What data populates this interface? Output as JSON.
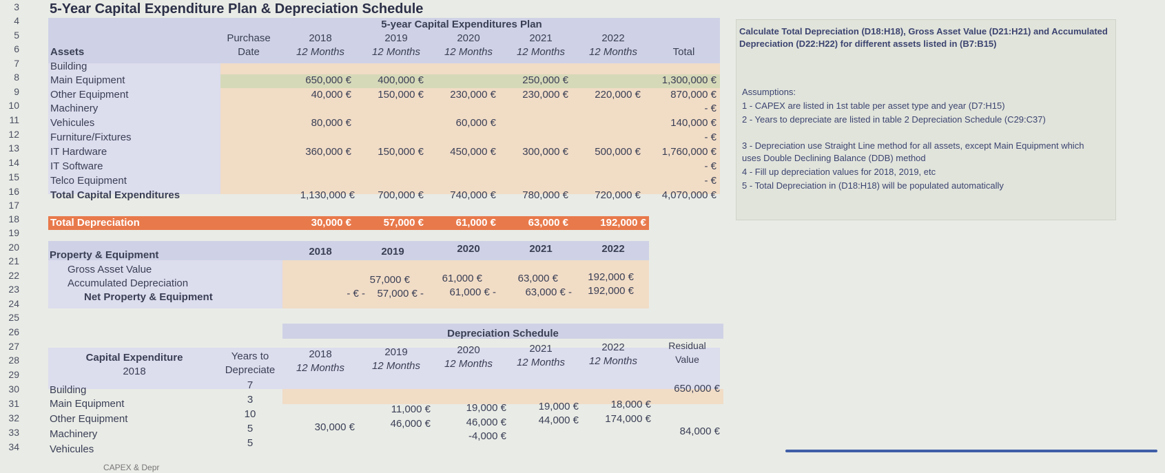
{
  "rows": [
    "3",
    "4",
    "5",
    "6",
    "7",
    "8",
    "9",
    "10",
    "11",
    "12",
    "13",
    "14",
    "15",
    "16",
    "17",
    "18",
    "19",
    "20",
    "21",
    "22",
    "23",
    "24",
    "25",
    "26",
    "27",
    "28",
    "29",
    "30",
    "31",
    "32",
    "33",
    "34"
  ],
  "title": "5-Year Capital Expenditure Plan & Depreciation Schedule",
  "capex": {
    "band": "5-year Capital Expenditures Plan",
    "purchase": "Purchase",
    "date": "Date",
    "assets": "Assets",
    "years": [
      "2018",
      "2019",
      "2020",
      "2021",
      "2022"
    ],
    "months": "12 Months",
    "total": "Total",
    "items": [
      "Building",
      "Main Equipment",
      "Other Equipment",
      "Machinery",
      "Vehicules",
      "Furniture/Fixtures",
      "IT Hardware",
      "IT Software",
      "Telco Equipment",
      "Total Capital Expenditures"
    ],
    "values": {
      "main": [
        "650,000 €",
        "400,000 €",
        "",
        "250,000 €",
        "",
        "1,300,000 €"
      ],
      "other": [
        "40,000 €",
        "150,000 €",
        "230,000 €",
        "230,000 €",
        "220,000 €",
        "870,000 €"
      ],
      "mach_total": "- €",
      "veh": [
        "80,000 €",
        "",
        "60,000 €",
        "",
        "",
        "140,000 €"
      ],
      "furn_total": "- €",
      "it": [
        "360,000 €",
        "150,000 €",
        "450,000 €",
        "300,000 €",
        "500,000 €",
        "1,760,000 €"
      ],
      "itsw_total": "- €",
      "telco_total": "- €",
      "totals": [
        "1,130,000 €",
        "700,000 €",
        "740,000 €",
        "780,000 €",
        "720,000 €",
        "4,070,000 €"
      ]
    }
  },
  "depr": {
    "label": "Total Depreciation",
    "values": [
      "30,000 €",
      "57,000 €",
      "61,000 €",
      "63,000 €",
      "192,000 €"
    ]
  },
  "pe": {
    "title": "Property & Equipment",
    "years": [
      "2018",
      "2019",
      "2020",
      "2021",
      "2022"
    ],
    "gross": "Gross Asset Value",
    "acc": "Accumulated Depreciation",
    "net": "Net Property & Equipment",
    "acc_vals": [
      "57,000 €",
      "61,000 €",
      "63,000 €",
      "192,000 €"
    ],
    "net_vals": [
      "- €  -",
      "57,000 €  -",
      "61,000 €  -",
      "63,000 €  -",
      "192,000 €"
    ]
  },
  "sched": {
    "band": "Depreciation Schedule",
    "capex": "Capital Expenditure",
    "year": "2018",
    "years_to": "Years to",
    "depreciate": "Depreciate",
    "years": [
      "2018",
      "2019",
      "2020",
      "2021",
      "2022"
    ],
    "months": "12 Months",
    "residual": "Residual",
    "value": "Value",
    "items": [
      "Building",
      "Main Equipment",
      "Other Equipment",
      "Machinery",
      "Vehicules"
    ],
    "yrs": [
      "7",
      "3",
      "10",
      "5",
      "5"
    ],
    "row_main": [
      "11,000 €",
      "19,000 €",
      "19,000 €",
      "18,000 €"
    ],
    "row_other": [
      "30,000 €",
      "46,000 €",
      "46,000 €",
      "44,000 €",
      "174,000 €"
    ],
    "row_mach": "-4,000 €",
    "residuals": [
      "650,000 €",
      "84,000 €"
    ],
    "tab": "CAPEX & Depr"
  },
  "side": {
    "task": "Calculate Total Depreciation (D18:H18), Gross Asset Value (D21:H21) and Accumulated Depreciation (D22:H22) for different assets listed in (B7:B15)",
    "assumptions": "Assumptions:",
    "a1": "1 - CAPEX are listed in 1st table per asset type and year (D7:H15)",
    "a2": "2 - Years to depreciate are listed in table 2 Depreciation Schedule (C29:C37)",
    "a3": "3 - Depreciation use Straight Line method for all assets, except Main Equipment which uses Double Declining Balance (DDB) method",
    "a4": "4 - Fill up depreciation values for 2018, 2019, etc",
    "a5": "5 - Total Depreciation in (D18:H18) will be populated automatically"
  }
}
